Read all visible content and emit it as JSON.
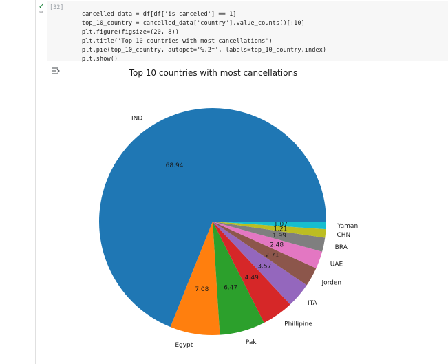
{
  "cell": {
    "exec_count": "[32]",
    "code_lines": [
      "cancelled_data = df[df['is_canceled'] == 1]",
      "top_10_country = cancelled_data['country'].value_counts()[:10]",
      "plt.figure(figsize=(20, 8))",
      "plt.title('Top 10 countries with most cancellations')",
      "plt.pie(top_10_country, autopct='%.2f', labels=top_10_country.index)",
      "plt.show()"
    ]
  },
  "colors": {
    "slices": [
      "#1f77b4",
      "#ff7f0e",
      "#2ca02c",
      "#d62728",
      "#9467bd",
      "#8c564b",
      "#e377c2",
      "#7f7f7f",
      "#bcbd22",
      "#17becf"
    ]
  },
  "chart_data": {
    "type": "pie",
    "title": "Top 10 countries with most cancellations",
    "labels": [
      "IND",
      "Egypt",
      "Pak",
      "Phillipine",
      "ITA",
      "Jorden",
      "UAE",
      "BRA",
      "CHN",
      "Yaman"
    ],
    "values": [
      68.94,
      7.08,
      6.47,
      4.49,
      3.57,
      2.71,
      2.48,
      1.99,
      1.21,
      1.07
    ],
    "value_labels": [
      "68.94",
      "7.08",
      "6.47",
      "4.49",
      "3.57",
      "2.71",
      "2.48",
      "1.99",
      "1.21",
      "1.07"
    ],
    "start_angle": 0,
    "direction": "counterclockwise"
  }
}
